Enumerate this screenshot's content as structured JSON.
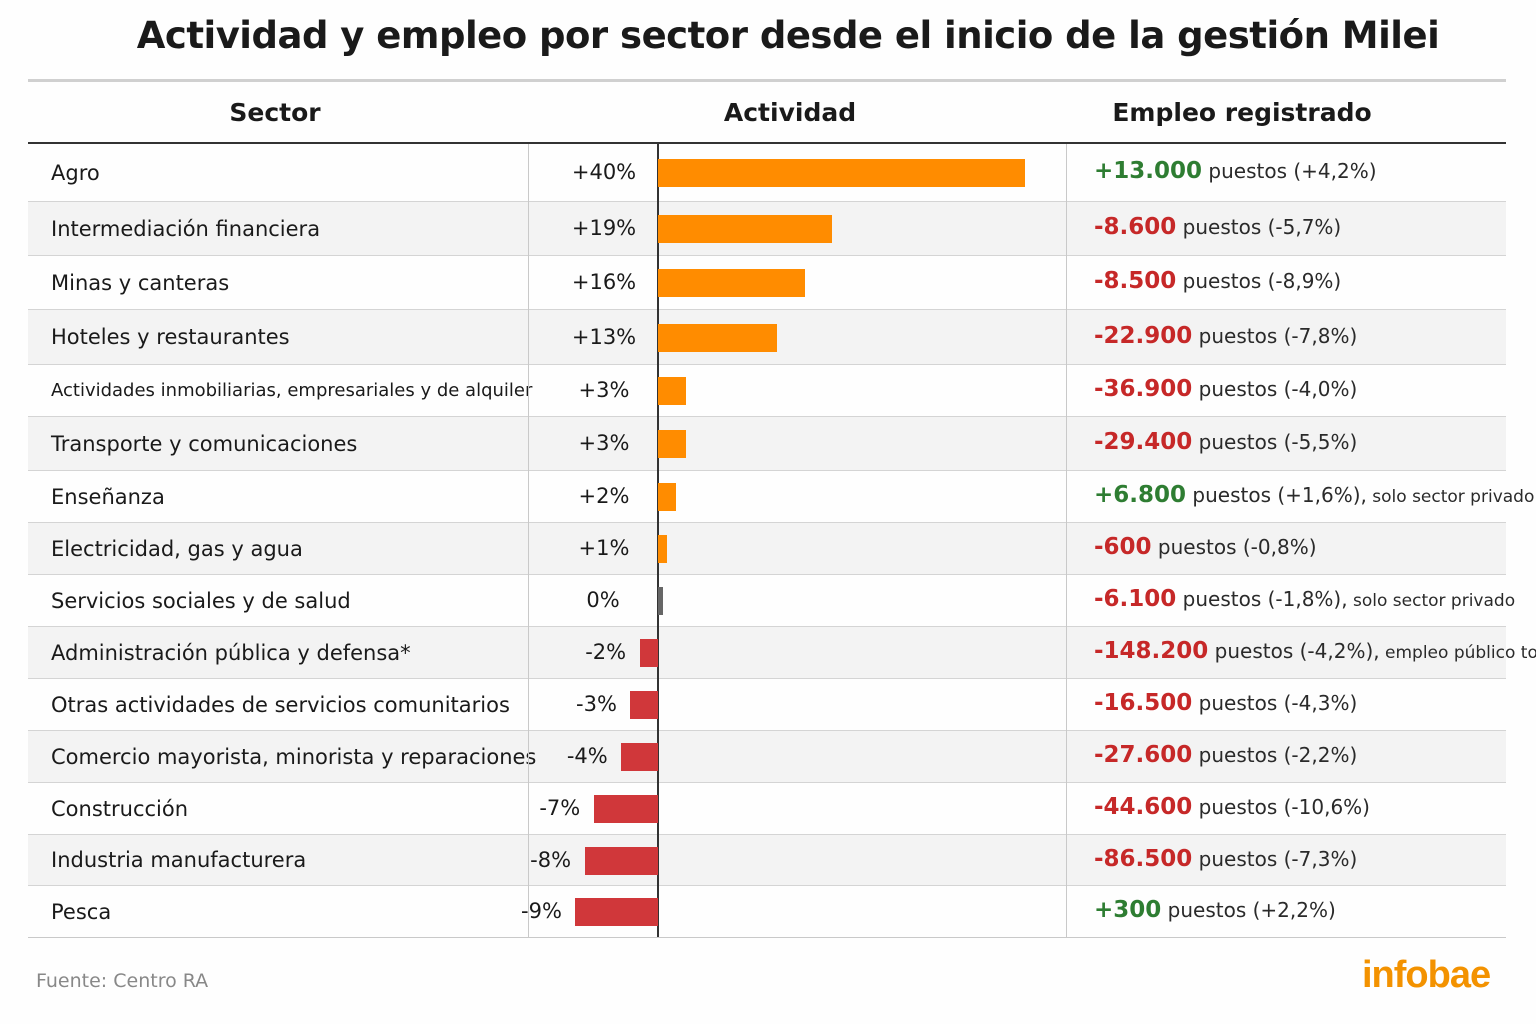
{
  "title": "Actividad y empleo por sector desde el inicio de la gestión Milei",
  "headers": {
    "sector": "Sector",
    "activity": "Actividad",
    "employment": "Empleo registrado"
  },
  "source": "Fuente: Centro RA",
  "logo": "infobae",
  "colors": {
    "positive_bar": "#ff8c00",
    "negative_bar": "#d0373a",
    "zero_bar": "#666666",
    "positive_text": "#2e7d32",
    "negative_text": "#c62828",
    "logo": "#f39200"
  },
  "chart_data": {
    "type": "bar",
    "orientation": "horizontal",
    "unit": "%",
    "categories": [
      "Agro",
      "Intermediación financiera",
      "Minas y canteras",
      "Hoteles y restaurantes",
      "Actividades inmobiliarias, empresariales y de alquiler",
      "Transporte y comunicaciones",
      "Enseñanza",
      "Electricidad, gas y agua",
      "Servicios sociales y de salud",
      "Administración pública y defensa*",
      "Otras actividades de servicios comunitarios",
      "Comercio mayorista, minorista y reparaciones",
      "Construcción",
      "Industria manufacturera",
      "Pesca"
    ],
    "values": [
      40,
      19,
      16,
      13,
      3,
      3,
      2,
      1,
      0,
      -2,
      -3,
      -4,
      -7,
      -8,
      -9
    ],
    "labels": [
      "+40%",
      "+19%",
      "+16%",
      "+13%",
      "+3%",
      "+3%",
      "+2%",
      "+1%",
      "0%",
      "-2%",
      "-3%",
      "-4%",
      "-7%",
      "-8%",
      "-9%"
    ]
  },
  "employment": [
    {
      "value": "+13.000",
      "text": " puestos (+4,2%)",
      "note": "",
      "sign": "pos"
    },
    {
      "value": "-8.600",
      "text": " puestos (-5,7%)",
      "note": "",
      "sign": "neg"
    },
    {
      "value": "-8.500",
      "text": " puestos (-8,9%)",
      "note": "",
      "sign": "neg"
    },
    {
      "value": "-22.900",
      "text": " puestos (-7,8%)",
      "note": "",
      "sign": "neg"
    },
    {
      "value": "-36.900",
      "text": " puestos (-4,0%)",
      "note": "",
      "sign": "neg"
    },
    {
      "value": "-29.400",
      "text": " puestos (-5,5%)",
      "note": "",
      "sign": "neg"
    },
    {
      "value": "+6.800",
      "text": " puestos (+1,6%),",
      "note": " solo sector privado",
      "sign": "pos"
    },
    {
      "value": "-600",
      "text": " puestos (-0,8%)",
      "note": "",
      "sign": "neg"
    },
    {
      "value": "-6.100",
      "text": " puestos (-1,8%),",
      "note": " solo sector privado",
      "sign": "neg"
    },
    {
      "value": "-148.200",
      "text": " puestos (-4,2%),",
      "note": " empleo público total",
      "sign": "neg"
    },
    {
      "value": "-16.500",
      "text": " puestos (-4,3%)",
      "note": "",
      "sign": "neg"
    },
    {
      "value": "-27.600",
      "text": " puestos (-2,2%)",
      "note": "",
      "sign": "neg"
    },
    {
      "value": "-44.600",
      "text": " puestos (-10,6%)",
      "note": "",
      "sign": "neg"
    },
    {
      "value": "-86.500",
      "text": " puestos (-7,3%)",
      "note": "",
      "sign": "neg"
    },
    {
      "value": "+300",
      "text": " puestos (+2,2%)",
      "note": "",
      "sign": "pos"
    }
  ]
}
